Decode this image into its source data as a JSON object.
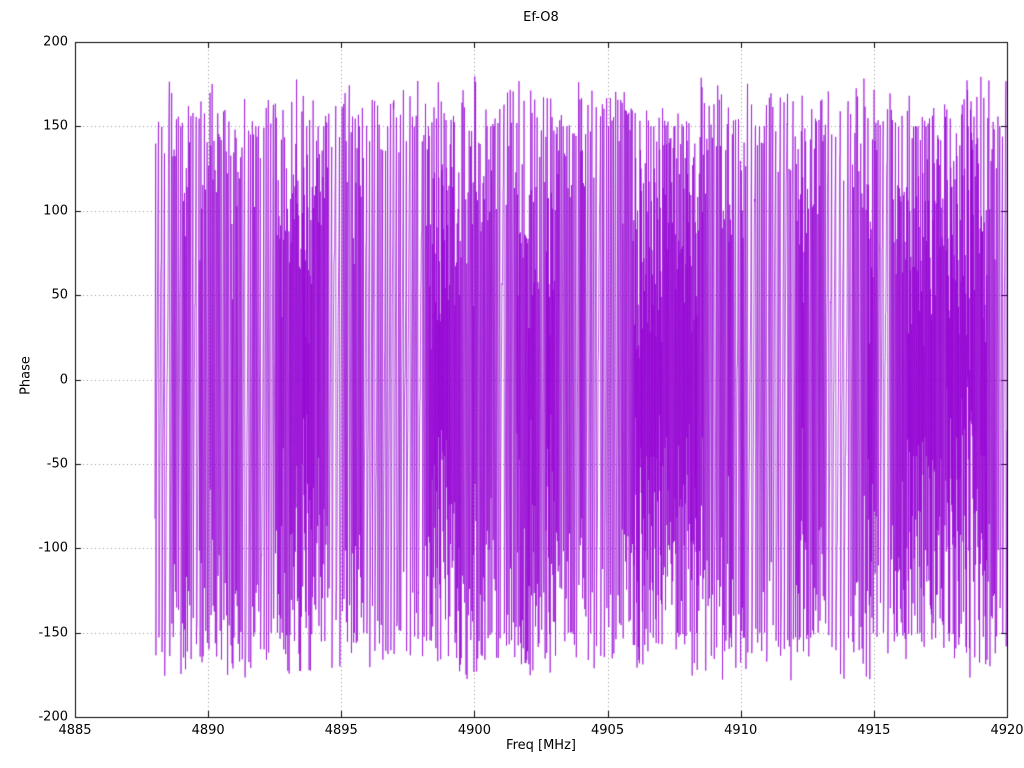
{
  "chart_data": {
    "type": "line",
    "title": "Ef-O8",
    "xlabel": "Freq [MHz]",
    "ylabel": "Phase",
    "xlim": [
      4885,
      4920
    ],
    "ylim": [
      -200,
      200
    ],
    "xticks": [
      4885,
      4890,
      4895,
      4900,
      4905,
      4910,
      4915,
      4920
    ],
    "yticks": [
      -200,
      -150,
      -100,
      -50,
      0,
      50,
      100,
      150,
      200
    ],
    "grid": true,
    "legend": "none",
    "series": [
      {
        "name": "phase",
        "color": "#9400d3",
        "description": "Densely wrapped interferometric phase noise, values uniformly filling -180 to +180 degrees",
        "x_start": 4888.0,
        "x_end": 4920.0,
        "n_points": 3200,
        "phase_wrap_min": -180,
        "phase_wrap_max": 180,
        "seed": 42
      }
    ]
  }
}
